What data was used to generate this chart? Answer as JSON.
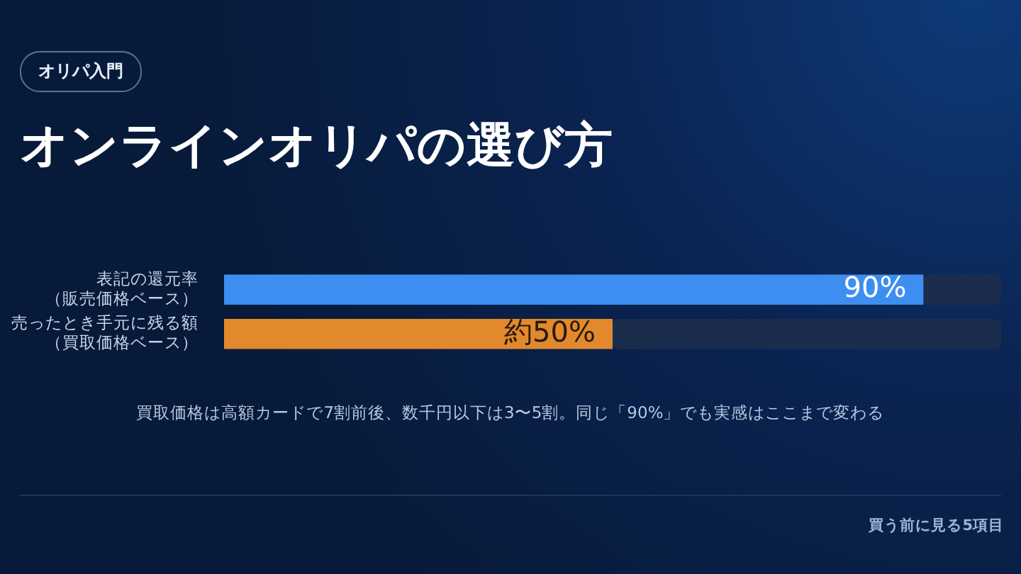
{
  "chart_data": {
    "type": "bar",
    "orientation": "horizontal",
    "title": "オンラインオリパの選び方",
    "categories": [
      "表記の還元率（販売価格ベース）",
      "売ったとき手元に残る額（買取価格ベース）"
    ],
    "stacked": true,
    "series": [
      {
        "colors": [
          "#3d8ef0",
          "#e2892e"
        ],
        "values": [
          90,
          50
        ],
        "value_labels": [
          "90%",
          "約50%"
        ]
      },
      {
        "color": "#1c2c4c",
        "values": [
          10,
          50
        ]
      }
    ],
    "xlim": [
      0,
      100
    ],
    "tick_labels": "y",
    "legend": false,
    "annotations": [
      "オリパ入門",
      "買取価格は高額カードで7割前後、数千円以下は3〜5割。同じ「90%」でも実感はここまで変わる",
      "買う前に見る5項目"
    ]
  }
}
